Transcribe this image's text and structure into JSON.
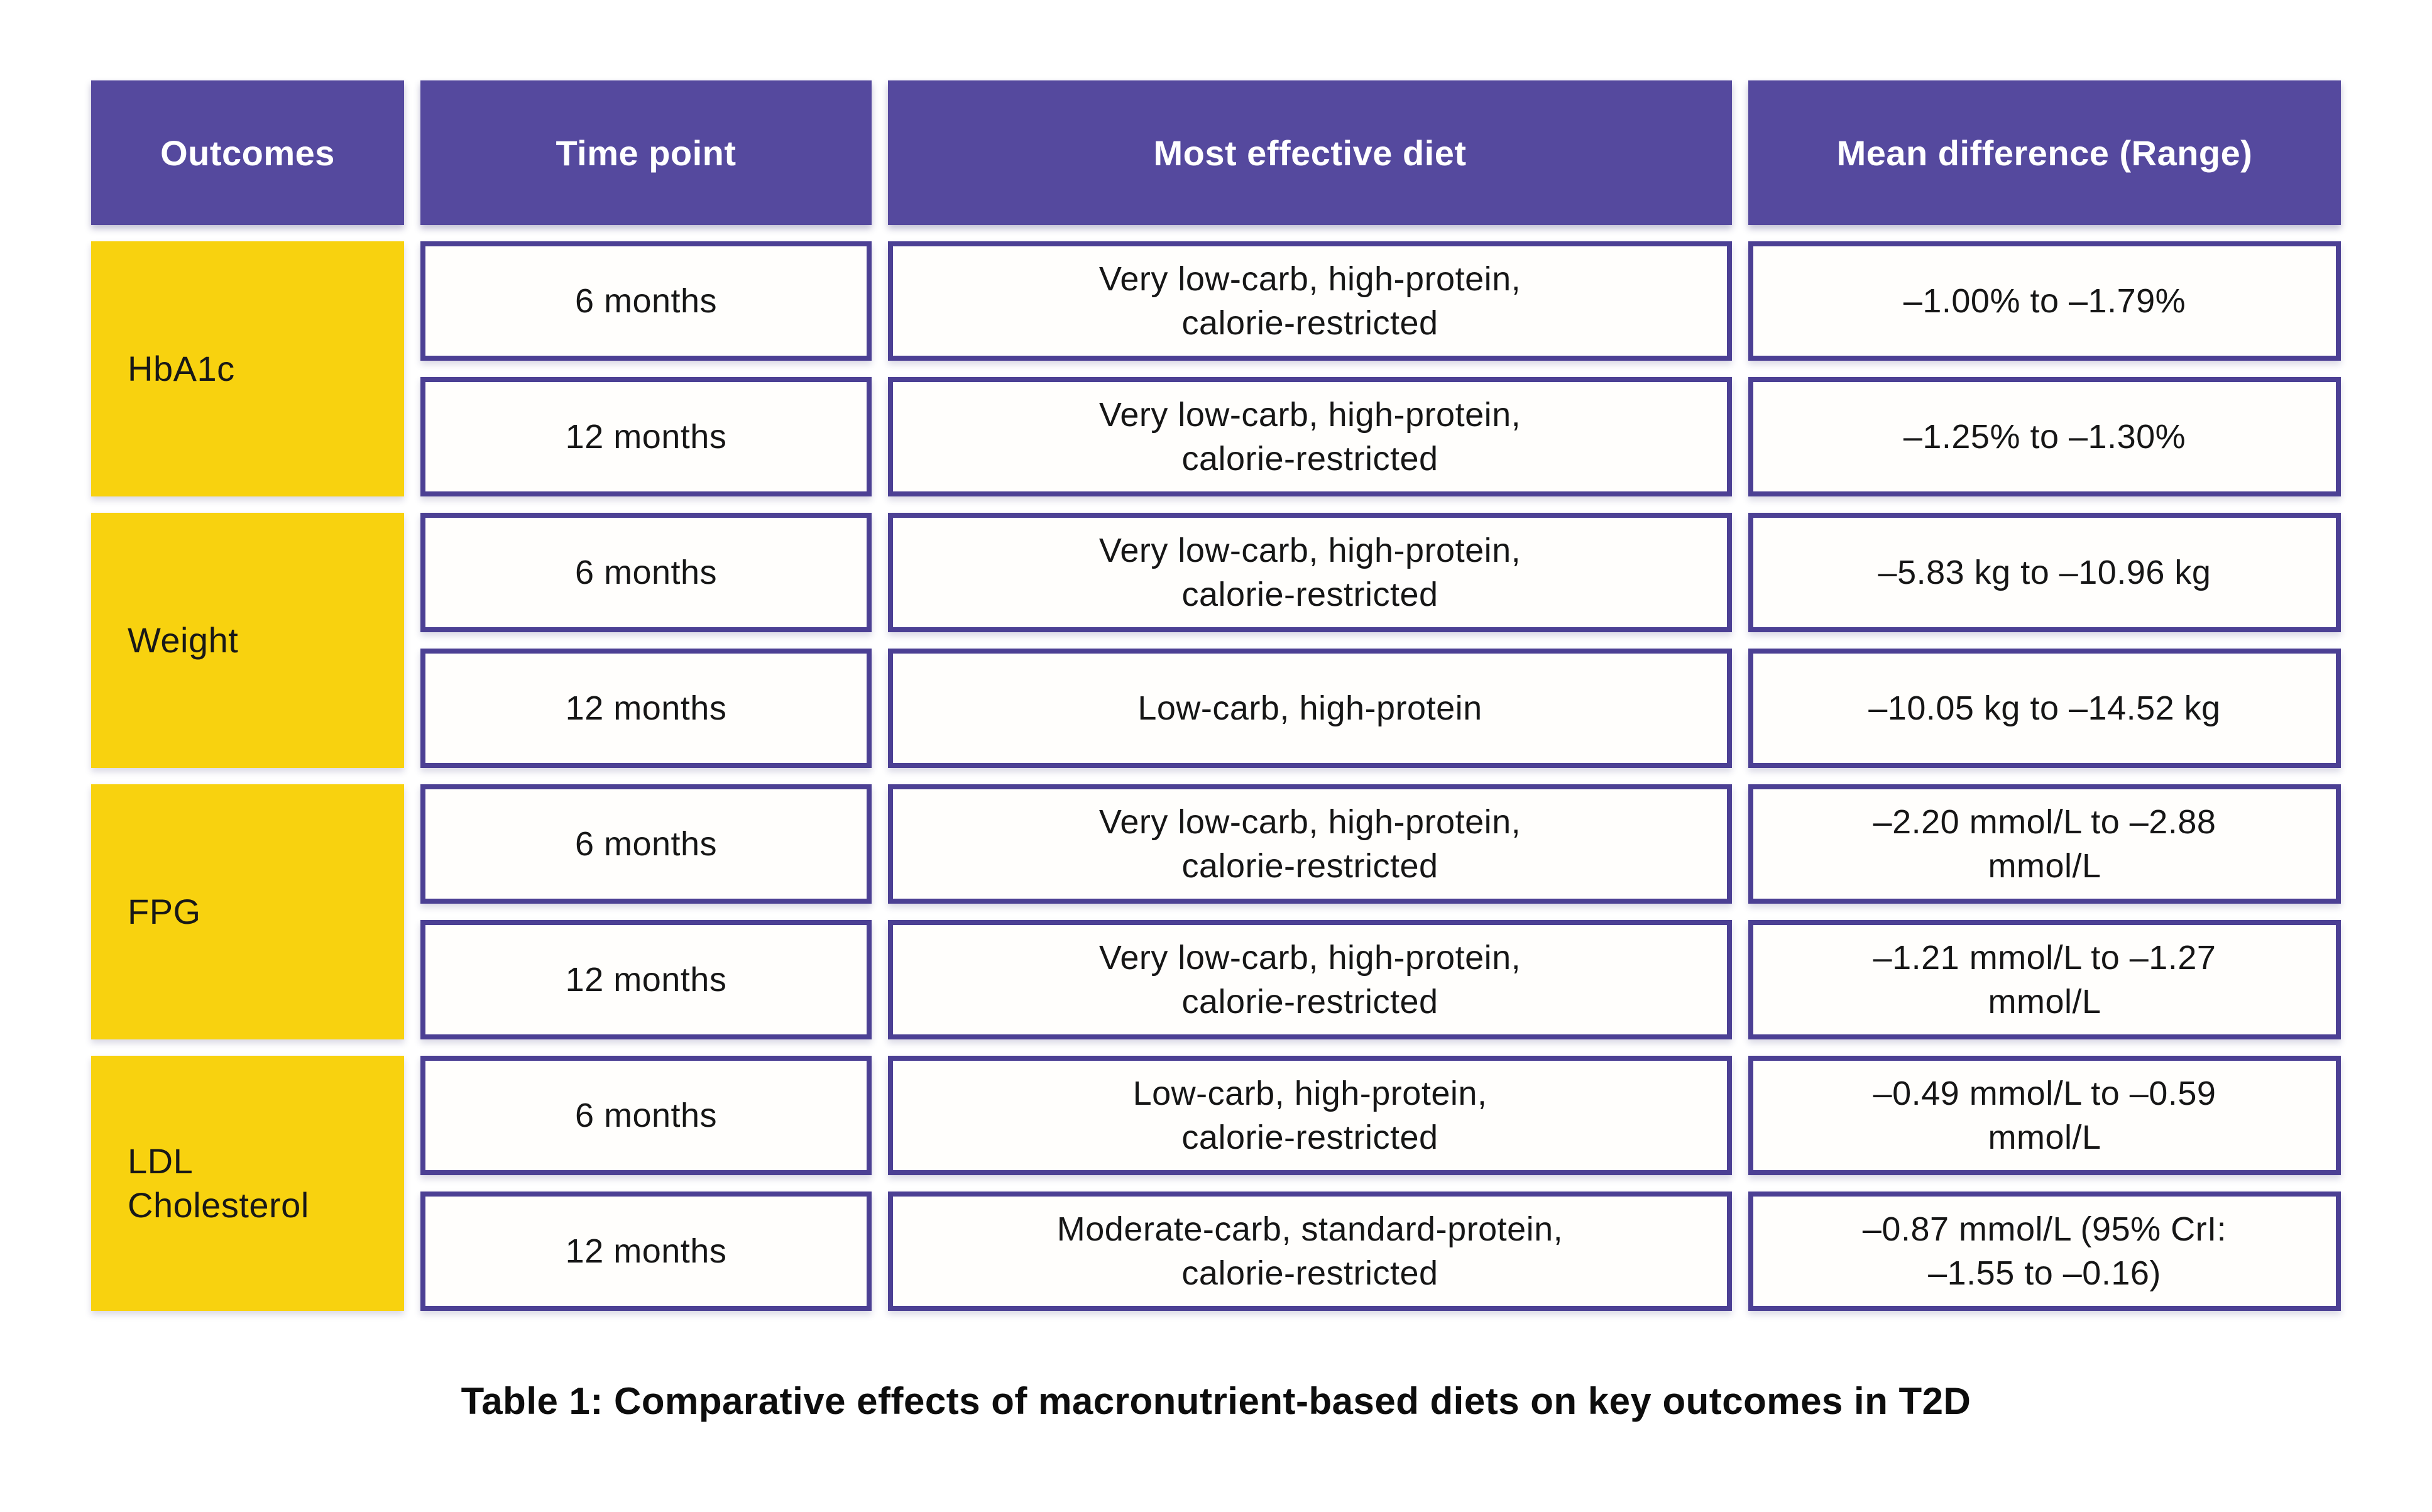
{
  "table": {
    "caption": "Table 1: Comparative effects of macronutrient-based diets on key outcomes in T2D",
    "headers": [
      "Outcomes",
      "Time point",
      "Most effective diet",
      "Mean difference (Range)"
    ],
    "colors": {
      "header_bg": "#55499e",
      "cell_border": "#4c4094",
      "outcome_bg": "#f8d20f",
      "header_text": "#ffffff",
      "body_text": "#161616"
    },
    "groups": [
      {
        "outcome": "HbA1c",
        "rows": [
          {
            "time": "6 months",
            "diet": "Very low-carb, high-protein,\ncalorie-restricted",
            "range": "–1.00% to –1.79%"
          },
          {
            "time": "12 months",
            "diet": "Very low-carb, high-protein,\ncalorie-restricted",
            "range": "–1.25% to –1.30%"
          }
        ]
      },
      {
        "outcome": "Weight",
        "rows": [
          {
            "time": "6 months",
            "diet": "Very low-carb, high-protein,\ncalorie-restricted",
            "range": "–5.83 kg to –10.96 kg"
          },
          {
            "time": "12 months",
            "diet": "Low-carb, high-protein",
            "range": "–10.05 kg to –14.52 kg"
          }
        ]
      },
      {
        "outcome": "FPG",
        "rows": [
          {
            "time": "6 months",
            "diet": "Very low-carb, high-protein,\ncalorie-restricted",
            "range": "–2.20 mmol/L to –2.88\nmmol/L"
          },
          {
            "time": "12 months",
            "diet": "Very low-carb, high-protein,\ncalorie-restricted",
            "range": "–1.21 mmol/L to –1.27\nmmol/L"
          }
        ]
      },
      {
        "outcome": "LDL\nCholesterol",
        "rows": [
          {
            "time": "6 months",
            "diet": "Low-carb, high-protein,\ncalorie-restricted",
            "range": "–0.49 mmol/L to –0.59\nmmol/L"
          },
          {
            "time": "12 months",
            "diet": "Moderate-carb, standard-protein,\ncalorie-restricted",
            "range": "–0.87 mmol/L (95% CrI:\n–1.55 to –0.16)"
          }
        ]
      }
    ]
  }
}
